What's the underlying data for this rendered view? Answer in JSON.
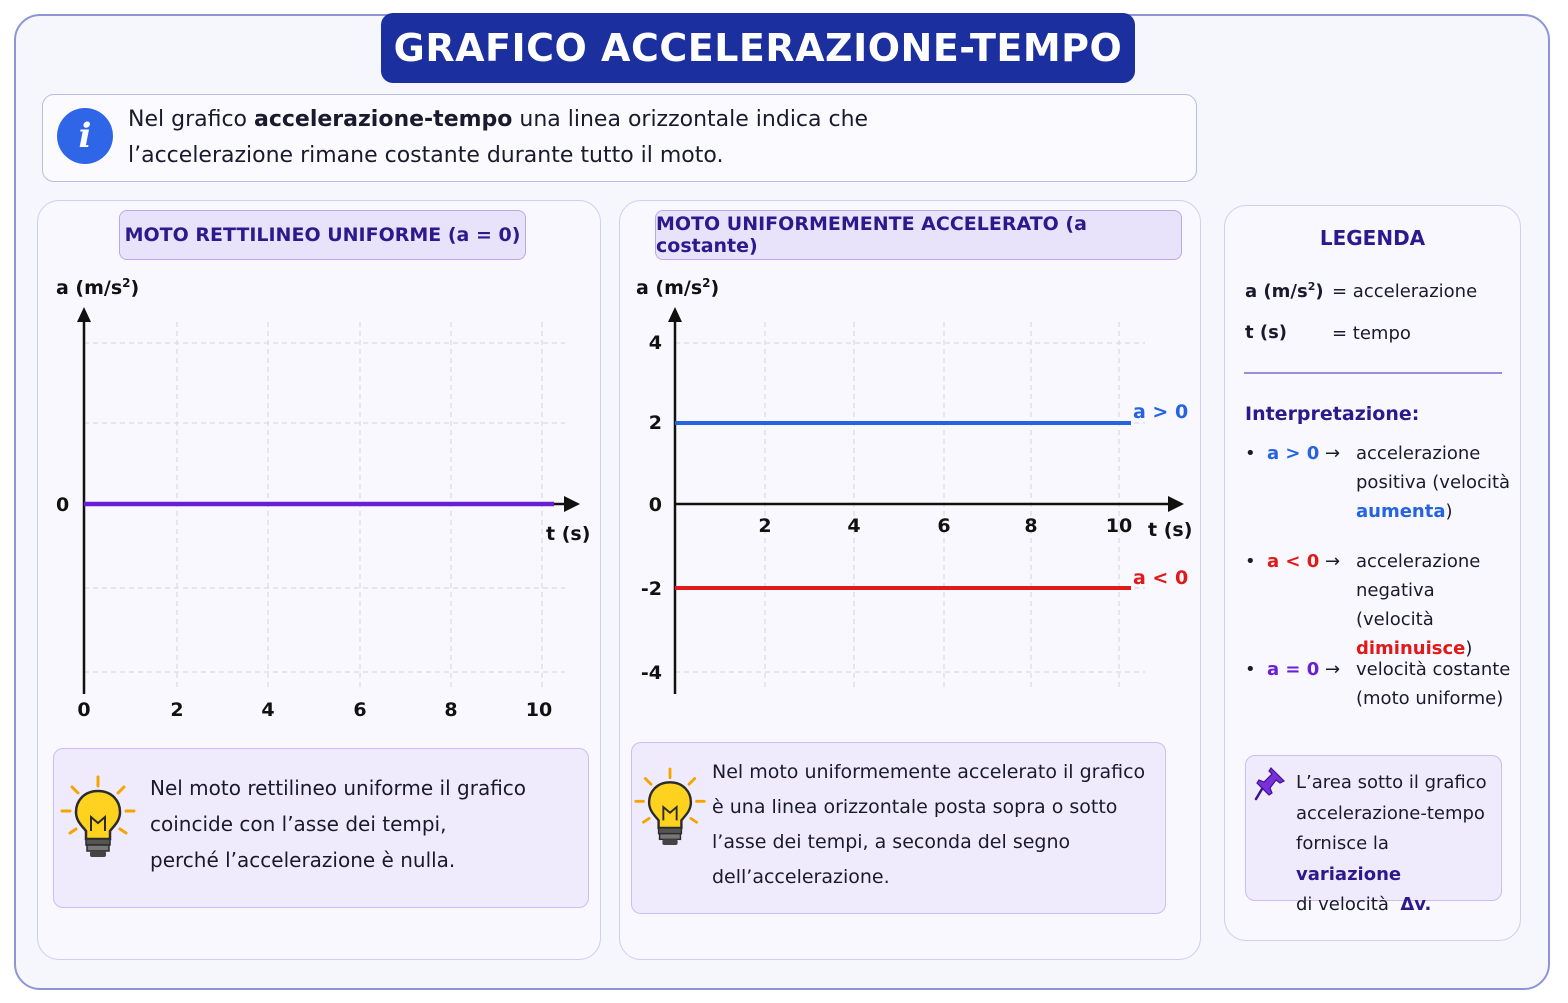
{
  "title": "GRAFICO ACCELERAZIONE-TEMPO",
  "info": {
    "icon": "info-icon",
    "icon_glyph": "i",
    "text_before": "Nel grafico ",
    "text_bold": "accelerazione-tempo",
    "text_after": " una linea orizzontale indica che",
    "text_line2": "l’accelerazione rimane costante durante tutto il moto."
  },
  "colors": {
    "blue": "#2563e0",
    "red": "#e01919",
    "purple": "#6a1fd6",
    "dark_blue": "#1b2f9e",
    "navy": "#2c1a8c"
  },
  "panel_left": {
    "heading": "MOTO RETTILINEO UNIFORME (a = 0)",
    "note_line1": "Nel moto rettilineo uniforme il grafico",
    "note_line2": "coincide con l’asse dei tempi,",
    "note_line3": "perché l’accelerazione è nulla.",
    "icon": "lightbulb-icon"
  },
  "panel_middle": {
    "heading": "MOTO UNIFORMEMENTE ACCELERATO (a costante)",
    "note_line1": "Nel moto uniformemente accelerato il grafico",
    "note_line2": "è una linea orizzontale posta sopra o sotto",
    "note_line3": "l’asse dei tempi, a seconda del segno",
    "note_line4": "dell’accelerazione.",
    "icon": "lightbulb-icon"
  },
  "chart_data": [
    {
      "type": "line",
      "xlabel": "t (s)",
      "ylabel": "a (m/s²)",
      "x_ticks": [
        "0",
        "2",
        "4",
        "6",
        "8",
        "10"
      ],
      "y_ticks": [
        "0"
      ],
      "xlim": [
        0,
        10
      ],
      "grid": true,
      "series": [
        {
          "x": [
            0,
            10
          ],
          "y": [
            0,
            0
          ],
          "color": "#6a1fd6"
        }
      ]
    },
    {
      "type": "line",
      "xlabel": "t (s)",
      "ylabel": "a (m/s²)",
      "x_ticks": [
        "2",
        "4",
        "6",
        "8",
        "10"
      ],
      "y_ticks": [
        "4",
        "2",
        "0",
        "-2",
        "-4"
      ],
      "xlim": [
        0,
        10
      ],
      "ylim": [
        -4,
        4
      ],
      "grid": true,
      "series": [
        {
          "name": "a > 0",
          "x": [
            0,
            10
          ],
          "y": [
            2,
            2
          ],
          "color": "#2563e0"
        },
        {
          "name": "a < 0",
          "x": [
            0,
            10
          ],
          "y": [
            -2,
            -2
          ],
          "color": "#e01919"
        }
      ]
    }
  ],
  "legend": {
    "title": "LEGENDA",
    "rows": [
      {
        "symbol": "a (m/s²)",
        "meaning": "= accelerazione"
      },
      {
        "symbol": "t (s)",
        "meaning": "= tempo"
      }
    ],
    "interp_title": "Interpretazione:",
    "bullets": [
      {
        "sym": "a > 0",
        "arrow": "→",
        "l1": "accelerazione",
        "l2": "positiva (velocità",
        "l3_hl": "aumenta",
        "l3_after": ")"
      },
      {
        "sym": "a < 0",
        "arrow": "→",
        "l1": "accelerazione",
        "l2": "negativa (velocità",
        "l3_hl": "diminuisce",
        "l3_after": ")"
      },
      {
        "sym": "a = 0",
        "arrow": "→",
        "l1": "velocità costante",
        "l2": "(moto uniforme)"
      }
    ],
    "tip": {
      "icon": "pushpin-icon",
      "l1": "L’area sotto il grafico",
      "l2": "accelerazione-tempo",
      "l3_before": "fornisce la ",
      "l3_bold": "variazione",
      "l4_before": "di velocità  ",
      "l4_bold": "Δv."
    }
  }
}
